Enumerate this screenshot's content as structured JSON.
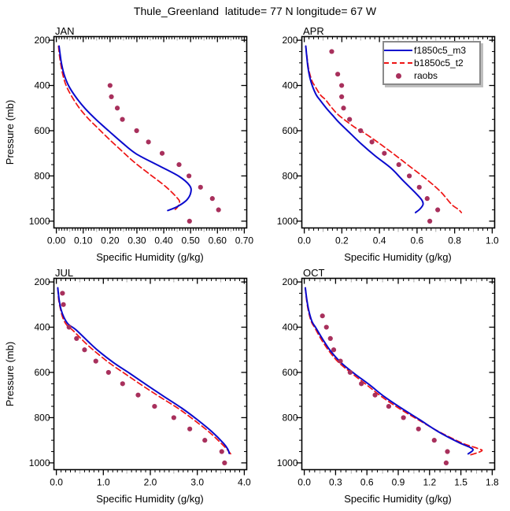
{
  "figure": {
    "title": "Thule_Greenland  latitude= 77 N longitude= 67 W"
  },
  "legend": {
    "location": "top-right of APR panel",
    "items": [
      {
        "label": "f1850c5_m3",
        "style": "solid",
        "color": "#0a0acd"
      },
      {
        "label": "b1850c5_t2",
        "style": "dashed",
        "color": "#ee1414"
      },
      {
        "label": "raobs",
        "style": "dots",
        "color": "#a8305c"
      }
    ]
  },
  "chart_data": [
    {
      "type": "line",
      "title": "JAN",
      "xlabel": "Specific Humidity (g/kg)",
      "ylabel": "Pressure (mb)",
      "xlim": [
        0.0,
        0.7
      ],
      "ylim": [
        1000,
        200
      ],
      "y_axis_inverted": true,
      "grid": false,
      "xticks": [
        0.0,
        0.1,
        0.2,
        0.3,
        0.4,
        0.5,
        0.6,
        0.7
      ],
      "xtick_labels": [
        "0.00",
        "0.10",
        "0.20",
        "0.30",
        "0.40",
        "0.50",
        "0.60",
        "0.70"
      ],
      "yticks": [
        200,
        400,
        600,
        800,
        1000
      ],
      "x_minor_divs": 10,
      "series": [
        {
          "name": "f1850c5_m3",
          "style": "solid",
          "color": "#0a0acd",
          "points": [
            [
              0.01,
              226
            ],
            [
              0.014,
              262
            ],
            [
              0.019,
              302
            ],
            [
              0.029,
              352
            ],
            [
              0.046,
              402
            ],
            [
              0.073,
              452
            ],
            [
              0.107,
              502
            ],
            [
              0.149,
              552
            ],
            [
              0.196,
              602
            ],
            [
              0.244,
              652
            ],
            [
              0.297,
              702
            ],
            [
              0.377,
              752
            ],
            [
              0.457,
              802
            ],
            [
              0.496,
              842
            ],
            [
              0.501,
              872
            ],
            [
              0.486,
              906
            ],
            [
              0.45,
              936
            ],
            [
              0.415,
              953
            ]
          ]
        },
        {
          "name": "b1850c5_t2",
          "style": "dashed",
          "color": "#ee1414",
          "points": [
            [
              0.008,
              226
            ],
            [
              0.011,
              262
            ],
            [
              0.016,
              302
            ],
            [
              0.024,
              352
            ],
            [
              0.037,
              402
            ],
            [
              0.059,
              452
            ],
            [
              0.087,
              502
            ],
            [
              0.12,
              548
            ],
            [
              0.154,
              588
            ],
            [
              0.197,
              638
            ],
            [
              0.246,
              692
            ],
            [
              0.293,
              742
            ],
            [
              0.347,
              792
            ],
            [
              0.407,
              847
            ],
            [
              0.45,
              897
            ],
            [
              0.459,
              917
            ],
            [
              0.45,
              940
            ],
            [
              0.437,
              953
            ]
          ]
        },
        {
          "name": "raobs",
          "style": "dots",
          "color": "#a8305c",
          "points": [
            [
              0.2,
              400
            ],
            [
              0.205,
              450
            ],
            [
              0.227,
              500
            ],
            [
              0.246,
              550
            ],
            [
              0.299,
              600
            ],
            [
              0.343,
              650
            ],
            [
              0.394,
              700
            ],
            [
              0.457,
              750
            ],
            [
              0.494,
              800
            ],
            [
              0.537,
              850
            ],
            [
              0.581,
              900
            ],
            [
              0.604,
              950
            ],
            [
              0.496,
              1000
            ]
          ]
        }
      ]
    },
    {
      "type": "line",
      "title": "APR",
      "xlabel": "Specific Humidity (g/kg)",
      "xlim": [
        0.0,
        1.0
      ],
      "ylim": [
        1000,
        200
      ],
      "y_axis_inverted": true,
      "grid": false,
      "xticks": [
        0.0,
        0.2,
        0.4,
        0.6,
        0.8,
        1.0
      ],
      "xtick_labels": [
        "0.0",
        "0.2",
        "0.4",
        "0.6",
        "0.8",
        "1.0"
      ],
      "yticks": [
        200,
        400,
        600,
        800,
        1000
      ],
      "x_minor_divs": 8,
      "series": [
        {
          "name": "f1850c5_m3",
          "style": "solid",
          "color": "#0a0acd",
          "points": [
            [
              0.008,
              226
            ],
            [
              0.013,
              270
            ],
            [
              0.02,
              322
            ],
            [
              0.03,
              366
            ],
            [
              0.043,
              402
            ],
            [
              0.064,
              442
            ],
            [
              0.085,
              466
            ],
            [
              0.119,
              502
            ],
            [
              0.151,
              532
            ],
            [
              0.183,
              562
            ],
            [
              0.245,
              612
            ],
            [
              0.308,
              662
            ],
            [
              0.378,
              712
            ],
            [
              0.462,
              766
            ],
            [
              0.525,
              820
            ],
            [
              0.588,
              872
            ],
            [
              0.625,
              906
            ],
            [
              0.632,
              926
            ],
            [
              0.616,
              946
            ],
            [
              0.592,
              962
            ]
          ]
        },
        {
          "name": "b1850c5_t2",
          "style": "dashed",
          "color": "#ee1414",
          "points": [
            [
              0.008,
              226
            ],
            [
              0.014,
              270
            ],
            [
              0.024,
              330
            ],
            [
              0.041,
              380
            ],
            [
              0.056,
              402
            ],
            [
              0.086,
              442
            ],
            [
              0.112,
              462
            ],
            [
              0.14,
              492
            ],
            [
              0.176,
              526
            ],
            [
              0.224,
              558
            ],
            [
              0.281,
              592
            ],
            [
              0.323,
              612
            ],
            [
              0.406,
              660
            ],
            [
              0.49,
              712
            ],
            [
              0.574,
              766
            ],
            [
              0.658,
              820
            ],
            [
              0.728,
              872
            ],
            [
              0.784,
              926
            ],
            [
              0.82,
              948
            ],
            [
              0.836,
              962
            ]
          ]
        },
        {
          "name": "raobs",
          "style": "dots",
          "color": "#a8305c",
          "points": [
            [
              0.146,
              250
            ],
            [
              0.178,
              350
            ],
            [
              0.199,
              400
            ],
            [
              0.199,
              450
            ],
            [
              0.209,
              500
            ],
            [
              0.241,
              550
            ],
            [
              0.3,
              600
            ],
            [
              0.36,
              650
            ],
            [
              0.426,
              700
            ],
            [
              0.503,
              750
            ],
            [
              0.559,
              800
            ],
            [
              0.612,
              850
            ],
            [
              0.654,
              900
            ],
            [
              0.71,
              950
            ],
            [
              0.668,
              1000
            ]
          ]
        }
      ]
    },
    {
      "type": "line",
      "title": "JUL",
      "xlabel": "Specific Humidity (g/kg)",
      "ylabel": "Pressure (mb)",
      "xlim": [
        0.0,
        4.0
      ],
      "ylim": [
        1000,
        200
      ],
      "y_axis_inverted": true,
      "grid": false,
      "xticks": [
        0.0,
        1.0,
        2.0,
        3.0,
        4.0
      ],
      "xtick_labels": [
        "0.0",
        "1.0",
        "2.0",
        "3.0",
        "4.0"
      ],
      "yticks": [
        200,
        400,
        600,
        800,
        1000
      ],
      "x_minor_divs": 10,
      "series": [
        {
          "name": "f1850c5_m3",
          "style": "solid",
          "color": "#0a0acd",
          "points": [
            [
              0.03,
              226
            ],
            [
              0.06,
              280
            ],
            [
              0.1,
              322
            ],
            [
              0.16,
              356
            ],
            [
              0.25,
              386
            ],
            [
              0.42,
              412
            ],
            [
              0.67,
              462
            ],
            [
              0.89,
              504
            ],
            [
              1.22,
              557
            ],
            [
              1.56,
              604
            ],
            [
              1.92,
              655
            ],
            [
              2.28,
              705
            ],
            [
              2.67,
              758
            ],
            [
              3.0,
              809
            ],
            [
              3.31,
              862
            ],
            [
              3.56,
              914
            ],
            [
              3.65,
              940
            ],
            [
              3.68,
              958
            ]
          ]
        },
        {
          "name": "b1850c5_t2",
          "style": "dashed",
          "color": "#ee1414",
          "points": [
            [
              0.03,
              226
            ],
            [
              0.05,
              280
            ],
            [
              0.09,
              322
            ],
            [
              0.14,
              360
            ],
            [
              0.22,
              390
            ],
            [
              0.36,
              416
            ],
            [
              0.6,
              466
            ],
            [
              0.82,
              507
            ],
            [
              1.14,
              560
            ],
            [
              1.47,
              607
            ],
            [
              1.83,
              658
            ],
            [
              2.2,
              708
            ],
            [
              2.6,
              760
            ],
            [
              2.94,
              812
            ],
            [
              3.26,
              865
            ],
            [
              3.52,
              916
            ],
            [
              3.64,
              942
            ],
            [
              3.71,
              960
            ]
          ]
        },
        {
          "name": "raobs",
          "style": "dots",
          "color": "#a8305c",
          "points": [
            [
              0.13,
              250
            ],
            [
              0.15,
              300
            ],
            [
              0.27,
              400
            ],
            [
              0.43,
              450
            ],
            [
              0.6,
              500
            ],
            [
              0.84,
              550
            ],
            [
              1.11,
              600
            ],
            [
              1.41,
              650
            ],
            [
              1.74,
              700
            ],
            [
              2.09,
              750
            ],
            [
              2.5,
              800
            ],
            [
              2.84,
              850
            ],
            [
              3.16,
              900
            ],
            [
              3.52,
              950
            ],
            [
              3.58,
              1000
            ]
          ]
        }
      ]
    },
    {
      "type": "line",
      "title": "OCT",
      "xlabel": "Specific Humidity (g/kg)",
      "xlim": [
        0.0,
        1.8
      ],
      "ylim": [
        1000,
        200
      ],
      "y_axis_inverted": true,
      "grid": false,
      "xticks": [
        0.0,
        0.3,
        0.6,
        0.9,
        1.2,
        1.5,
        1.8
      ],
      "xtick_labels": [
        "0.0",
        "0.3",
        "0.6",
        "0.9",
        "1.2",
        "1.5",
        "1.8"
      ],
      "yticks": [
        200,
        400,
        600,
        800,
        1000
      ],
      "x_minor_divs": 6,
      "series": [
        {
          "name": "f1850c5_m3",
          "style": "solid",
          "color": "#0a0acd",
          "points": [
            [
              0.01,
              226
            ],
            [
              0.025,
              280
            ],
            [
              0.045,
              330
            ],
            [
              0.075,
              376
            ],
            [
              0.11,
              402
            ],
            [
              0.175,
              452
            ],
            [
              0.25,
              504
            ],
            [
              0.35,
              556
            ],
            [
              0.476,
              604
            ],
            [
              0.628,
              656
            ],
            [
              0.766,
              707
            ],
            [
              0.93,
              758
            ],
            [
              1.105,
              809
            ],
            [
              1.283,
              862
            ],
            [
              1.48,
              910
            ],
            [
              1.59,
              932
            ],
            [
              1.615,
              944
            ],
            [
              1.57,
              960
            ]
          ]
        },
        {
          "name": "b1850c5_t2",
          "style": "dashed",
          "color": "#ee1414",
          "points": [
            [
              0.01,
              226
            ],
            [
              0.022,
              280
            ],
            [
              0.04,
              330
            ],
            [
              0.068,
              376
            ],
            [
              0.1,
              402
            ],
            [
              0.16,
              452
            ],
            [
              0.235,
              504
            ],
            [
              0.33,
              556
            ],
            [
              0.455,
              604
            ],
            [
              0.6,
              656
            ],
            [
              0.74,
              707
            ],
            [
              0.905,
              758
            ],
            [
              1.09,
              809
            ],
            [
              1.29,
              862
            ],
            [
              1.51,
              912
            ],
            [
              1.66,
              936
            ],
            [
              1.7,
              947
            ],
            [
              1.59,
              965
            ]
          ]
        },
        {
          "name": "raobs",
          "style": "dots",
          "color": "#a8305c",
          "points": [
            [
              0.174,
              350
            ],
            [
              0.212,
              400
            ],
            [
              0.25,
              450
            ],
            [
              0.282,
              500
            ],
            [
              0.346,
              550
            ],
            [
              0.439,
              600
            ],
            [
              0.547,
              650
            ],
            [
              0.678,
              700
            ],
            [
              0.809,
              750
            ],
            [
              0.95,
              800
            ],
            [
              1.094,
              850
            ],
            [
              1.245,
              900
            ],
            [
              1.371,
              950
            ],
            [
              1.359,
              1000
            ]
          ]
        }
      ]
    }
  ]
}
